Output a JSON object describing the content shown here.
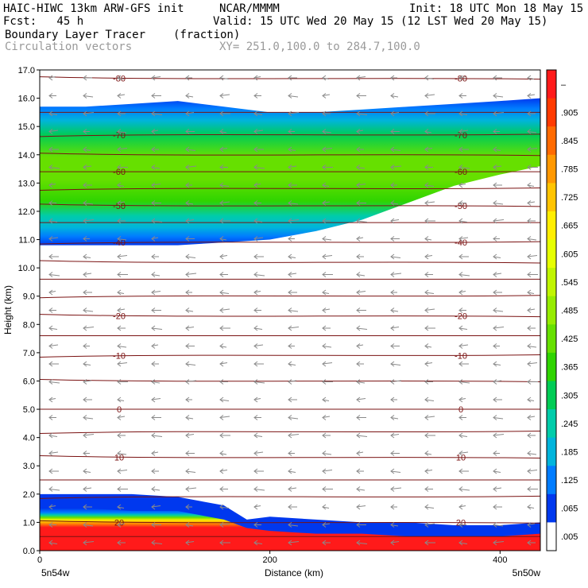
{
  "header": {
    "model": "HAIC-HIWC 13km ARW-GFS init",
    "org": "NCAR/MMMM",
    "init": "Init: 18 UTC Mon 18 May 15",
    "fcst": "Fcst:   45 h",
    "valid": "Valid: 15 UTC Wed 20 May 15 (12 LST Wed 20 May 15)",
    "field": "Boundary Layer Tracer",
    "units": "(fraction)",
    "vectors": "Circulation vectors",
    "xy": "XY= 251.0,100.0 to 284.7,100.0"
  },
  "chart_data": {
    "type": "heatmap",
    "xlabel": "Distance (km)",
    "ylabel": "Height (km)",
    "xlim": [
      0,
      435
    ],
    "ylim": [
      0,
      17
    ],
    "x_ticks": [
      0,
      200,
      400
    ],
    "y_ticks": [
      "0.0",
      "1.0",
      "2.0",
      "3.0",
      "4.0",
      "5.0",
      "6.0",
      "7.0",
      "8.0",
      "9.0",
      "10.0",
      "11.0",
      "12.0",
      "13.0",
      "14.0",
      "15.0",
      "16.0",
      "17.0"
    ],
    "left_corner_label": "5n54w",
    "right_corner_label": "5n50w",
    "colorbar": {
      "labels": [
        "–",
        ".905",
        ".845",
        ".785",
        ".725",
        ".665",
        ".605",
        ".545",
        ".485",
        ".425",
        ".365",
        ".305",
        ".245",
        ".185",
        ".125",
        ".065",
        ".005"
      ],
      "colors": [
        "#ff1a1a",
        "#ff3a00",
        "#ff6a00",
        "#ff9800",
        "#ffc400",
        "#ffee00",
        "#e6ff00",
        "#c0f500",
        "#96ec00",
        "#66e000",
        "#2fd400",
        "#00cc55",
        "#00ccaa",
        "#00b4dc",
        "#007cff",
        "#0038ee",
        "#ffffff"
      ]
    },
    "isotherms": [
      {
        "height": 16.7,
        "label": "-80"
      },
      {
        "height": 15.5,
        "label": ""
      },
      {
        "height": 14.7,
        "label": "-70"
      },
      {
        "height": 14.0,
        "label": ""
      },
      {
        "height": 13.4,
        "label": "-60"
      },
      {
        "height": 12.8,
        "label": ""
      },
      {
        "height": 12.2,
        "label": "-50"
      },
      {
        "height": 11.6,
        "label": ""
      },
      {
        "height": 10.9,
        "label": "-40"
      },
      {
        "height": 10.2,
        "label": ""
      },
      {
        "height": 9.6,
        "label": ""
      },
      {
        "height": 9.0,
        "label": ""
      },
      {
        "height": 8.3,
        "label": "-20"
      },
      {
        "height": 7.6,
        "label": ""
      },
      {
        "height": 6.9,
        "label": "-10"
      },
      {
        "height": 6.0,
        "label": ""
      },
      {
        "height": 5.0,
        "label": "0"
      },
      {
        "height": 4.2,
        "label": ""
      },
      {
        "height": 3.3,
        "label": "10"
      },
      {
        "height": 2.5,
        "label": ""
      },
      {
        "height": 1.9,
        "label": ""
      },
      {
        "height": 1.0,
        "label": "20"
      },
      {
        "height": 0.5,
        "label": ""
      }
    ],
    "upper_tracer_layer": {
      "bottom_km": [
        10.8,
        10.8,
        10.8,
        10.8,
        10.9,
        11.0,
        11.3,
        11.7,
        12.3,
        12.9,
        13.3,
        13.6
      ],
      "top_km": [
        15.7,
        15.7,
        15.8,
        15.9,
        15.7,
        15.5,
        15.5,
        15.6,
        15.7,
        15.8,
        15.9,
        16.0
      ],
      "x_km": [
        0,
        40,
        80,
        120,
        160,
        200,
        240,
        280,
        320,
        360,
        400,
        435
      ]
    },
    "lower_tracer_layer": {
      "x_km": [
        0,
        40,
        80,
        120,
        160,
        180,
        200,
        240,
        280,
        320,
        360,
        400,
        435
      ],
      "top_km": [
        2.0,
        2.0,
        2.0,
        1.9,
        1.6,
        1.1,
        1.2,
        1.1,
        1.0,
        1.0,
        0.9,
        0.9,
        1.0
      ],
      "red_top_km": [
        1.5,
        1.5,
        1.4,
        1.4,
        1.1,
        0.8,
        0.7,
        0.6,
        0.6,
        0.5,
        0.5,
        0.5,
        0.6
      ]
    }
  }
}
